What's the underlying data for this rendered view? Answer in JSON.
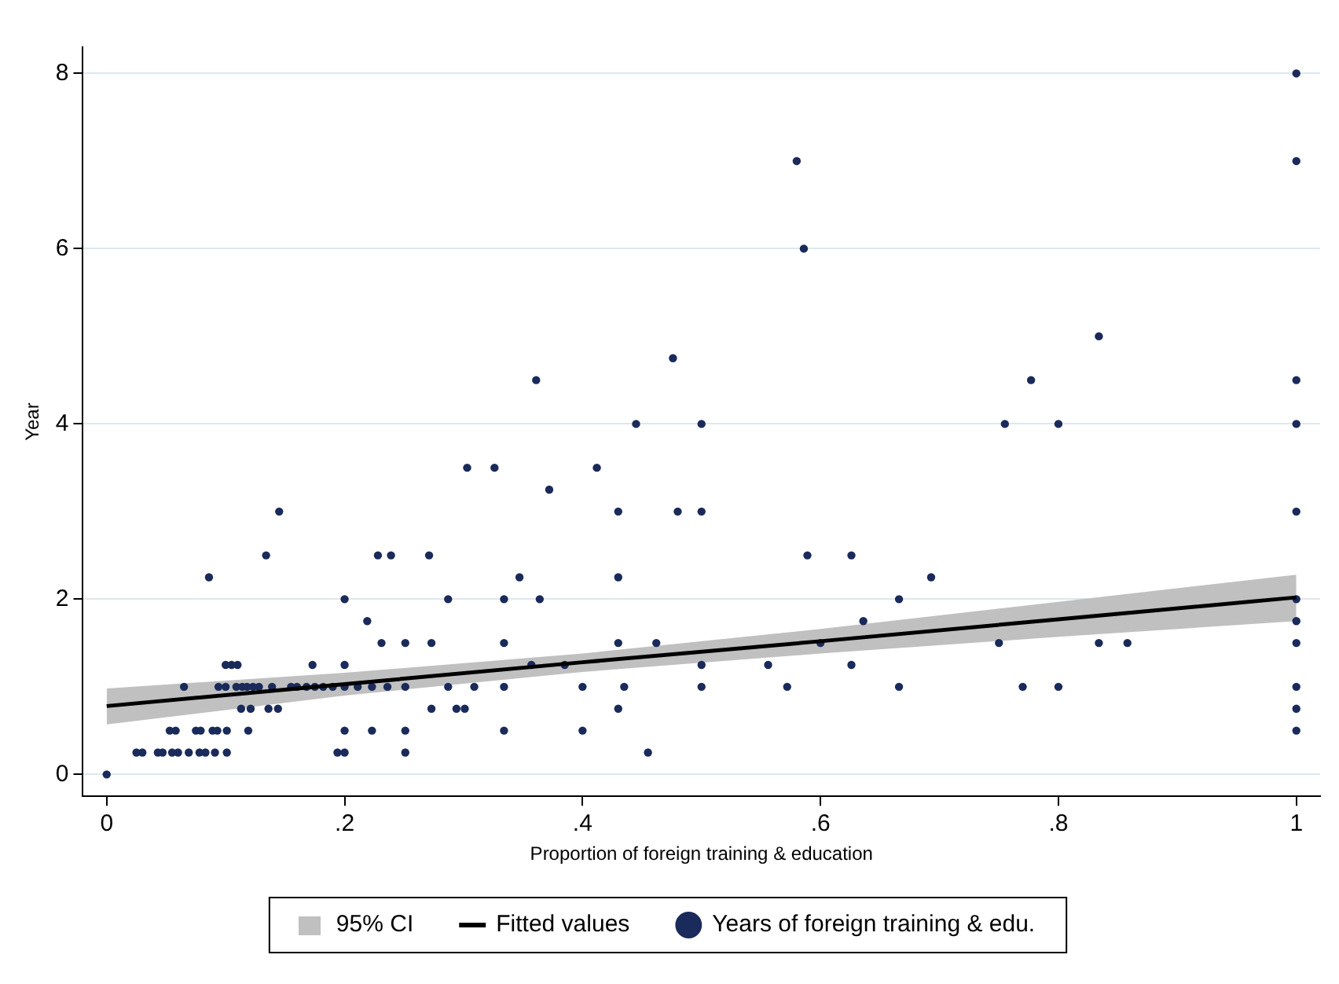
{
  "chart_data": {
    "type": "scatter",
    "annotations": [
      "95% CI"
    ],
    "xlabel": "Proportion of foreign training & education",
    "ylabel": "Year",
    "xlim": [
      -0.02,
      1.02
    ],
    "ylim": [
      -0.25,
      8.3
    ],
    "xticks": [
      0,
      {
        "value": 0.2,
        "label": ".2"
      },
      {
        "value": 0.4,
        "label": ".4"
      },
      {
        "value": 0.6,
        "label": ".6"
      },
      {
        "value": 0.8,
        "label": ".8"
      },
      1
    ],
    "yticks": [
      0,
      2,
      4,
      6,
      8
    ],
    "grid": "y",
    "legend": "bottom",
    "marker": "circle",
    "series": [
      {
        "name": "Fitted values",
        "type": "line",
        "color": "#000000",
        "line_style": "solid",
        "marker": "none",
        "x": [
          0,
          0.2,
          0.4,
          0.6,
          0.8,
          1
        ],
        "values": [
          0.78,
          1.03,
          1.28,
          1.52,
          1.77,
          2.02
        ],
        "lower": [
          0.57,
          0.9,
          1.17,
          1.38,
          1.57,
          1.75
        ],
        "upper": [
          0.98,
          1.16,
          1.38,
          1.66,
          1.97,
          2.28
        ]
      },
      {
        "name": "Years of foreign training & edu.",
        "color": "#1a2a5a",
        "x": [
          0,
          0.025,
          0.03,
          0.043,
          0.047,
          0.055,
          0.06,
          0.069,
          0.078,
          0.083,
          0.091,
          0.101,
          0.194,
          0.2,
          0.251,
          0.455,
          0.053,
          0.058,
          0.075,
          0.079,
          0.089,
          0.093,
          0.101,
          0.119,
          0.2,
          0.223,
          0.251,
          0.334,
          0.4,
          1,
          0.113,
          0.121,
          0.136,
          0.144,
          0.273,
          0.294,
          0.301,
          0.43,
          1,
          0.065,
          0.094,
          0.1,
          0.109,
          0.114,
          0.118,
          0.123,
          0.128,
          0.139,
          0.155,
          0.16,
          0.168,
          0.175,
          0.182,
          0.19,
          0.2,
          0.211,
          0.223,
          0.236,
          0.251,
          0.287,
          0.309,
          0.334,
          0.4,
          0.435,
          0.5,
          0.572,
          0.666,
          0.77,
          0.8,
          1,
          0.1,
          0.105,
          0.11,
          0.173,
          0.2,
          0.357,
          0.385,
          0.5,
          0.556,
          0.626,
          0.231,
          0.251,
          0.273,
          0.334,
          0.43,
          0.462,
          0.6,
          0.75,
          0.834,
          0.858,
          1,
          0.219,
          0.636,
          1,
          0.2,
          0.287,
          0.334,
          0.364,
          0.666,
          1,
          0.086,
          0.347,
          0.43,
          0.693,
          0.134,
          0.228,
          0.239,
          0.271,
          0.589,
          0.626,
          0.145,
          0.43,
          0.48,
          0.5,
          1,
          0.372,
          0.303,
          0.326,
          0.412,
          0.445,
          0.5,
          0.755,
          0.8,
          1,
          0.361,
          0.777,
          1,
          0.476,
          0.834,
          0.586,
          0.58,
          1,
          1
        ],
        "values": [
          0,
          0.25,
          0.25,
          0.25,
          0.25,
          0.25,
          0.25,
          0.25,
          0.25,
          0.25,
          0.25,
          0.25,
          0.25,
          0.25,
          0.25,
          0.25,
          0.5,
          0.5,
          0.5,
          0.5,
          0.5,
          0.5,
          0.5,
          0.5,
          0.5,
          0.5,
          0.5,
          0.5,
          0.5,
          0.5,
          0.75,
          0.75,
          0.75,
          0.75,
          0.75,
          0.75,
          0.75,
          0.75,
          0.75,
          1,
          1,
          1,
          1,
          1,
          1,
          1,
          1,
          1,
          1,
          1,
          1,
          1,
          1,
          1,
          1,
          1,
          1,
          1,
          1,
          1,
          1,
          1,
          1,
          1,
          1,
          1,
          1,
          1,
          1,
          1,
          1.25,
          1.25,
          1.25,
          1.25,
          1.25,
          1.25,
          1.25,
          1.25,
          1.25,
          1.25,
          1.5,
          1.5,
          1.5,
          1.5,
          1.5,
          1.5,
          1.5,
          1.5,
          1.5,
          1.5,
          1.5,
          1.75,
          1.75,
          1.75,
          2,
          2,
          2,
          2,
          2,
          2,
          2.25,
          2.25,
          2.25,
          2.25,
          2.5,
          2.5,
          2.5,
          2.5,
          2.5,
          2.5,
          3,
          3,
          3,
          3,
          3,
          3.25,
          3.5,
          3.5,
          3.5,
          4,
          4,
          4,
          4,
          4,
          4.5,
          4.5,
          4.5,
          4.75,
          5,
          6,
          7,
          7,
          8
        ]
      }
    ]
  }
}
